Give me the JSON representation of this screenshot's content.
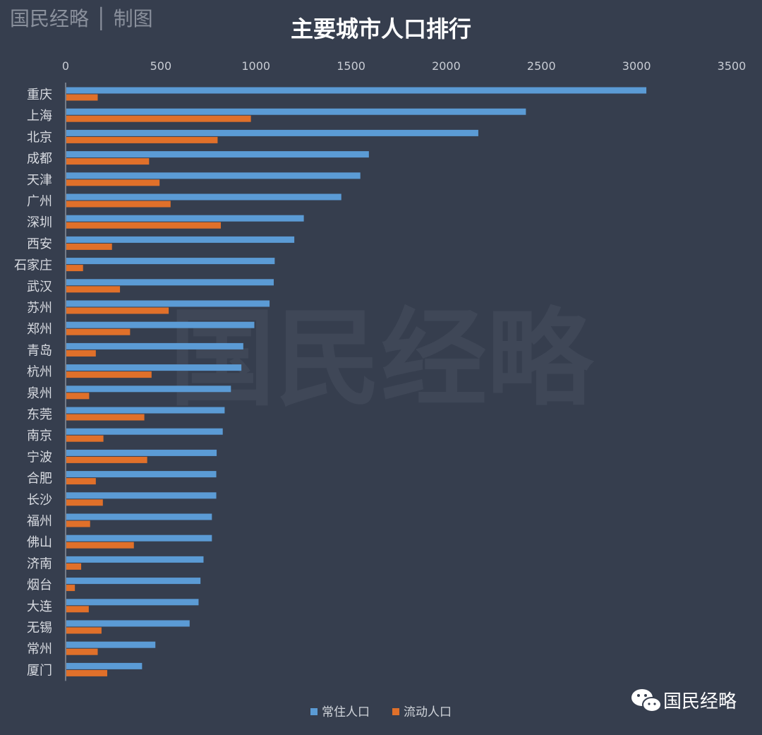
{
  "source_label": "国民经略 │ 制图",
  "watermark": "国民经略",
  "brand": {
    "name": "国民经略",
    "icon": "wechat-icon"
  },
  "colors": {
    "background": "#363e4e",
    "resident": "#5b9bd5",
    "floating": "#e0702a"
  },
  "chart_data": {
    "type": "bar",
    "orientation": "horizontal",
    "title": "主要城市人口排行",
    "categories": [
      "重庆",
      "上海",
      "北京",
      "成都",
      "天津",
      "广州",
      "深圳",
      "西安",
      "石家庄",
      "武汉",
      "苏州",
      "郑州",
      "青岛",
      "杭州",
      "泉州",
      "东莞",
      "南京",
      "宁波",
      "合肥",
      "长沙",
      "福州",
      "佛山",
      "济南",
      "烟台",
      "大连",
      "无锡",
      "常州",
      "厦门"
    ],
    "series": [
      {
        "name": "常住人口",
        "values": [
          3048,
          2415,
          2165,
          1590,
          1545,
          1445,
          1248,
          1198,
          1095,
          1090,
          1068,
          988,
          930,
          920,
          865,
          832,
          822,
          790,
          788,
          788,
          765,
          765,
          721,
          705,
          695,
          648,
          468,
          398
        ]
      },
      {
        "name": "流动人口",
        "values": [
          165,
          970,
          795,
          435,
          490,
          548,
          812,
          240,
          88,
          282,
          538,
          335,
          155,
          448,
          120,
          410,
          195,
          425,
          155,
          192,
          125,
          355,
          78,
          45,
          118,
          185,
          165,
          215
        ]
      }
    ],
    "xlim": [
      0,
      3500
    ],
    "xticks": [
      "0",
      "500",
      "1000",
      "1500",
      "2000",
      "2500",
      "3000",
      "3500"
    ],
    "xticks_position": "top",
    "legend_position": "bottom",
    "grid": false
  }
}
